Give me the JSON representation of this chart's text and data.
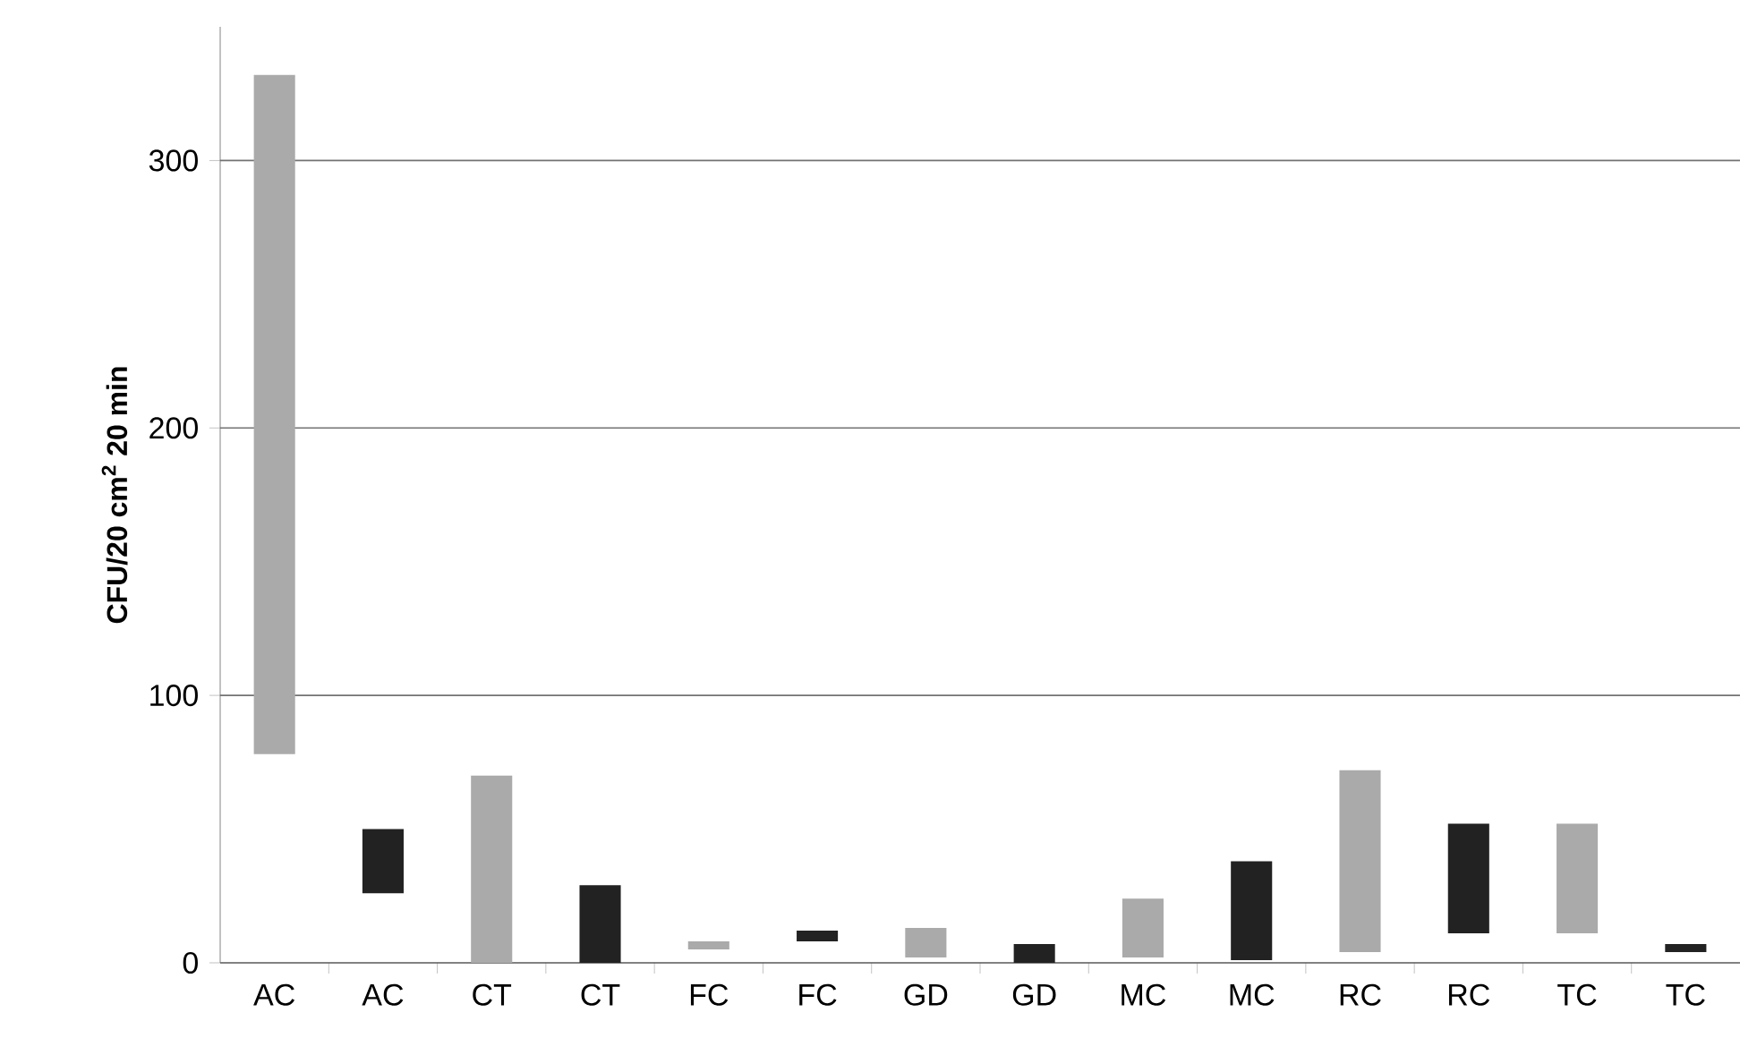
{
  "chart_data": {
    "type": "bar",
    "ylabel": "CFU/20 cm$^{2}$ 20 min",
    "categories": [
      "AC",
      "AC",
      "CT",
      "CT",
      "FC",
      "FC",
      "GD",
      "GD",
      "MC",
      "MC",
      "RC",
      "RC",
      "TC",
      "TC"
    ],
    "base": [
      78,
      26,
      0,
      0,
      5,
      8,
      2,
      0,
      2,
      1,
      4,
      11,
      11,
      4
    ],
    "values": [
      254,
      24,
      70,
      29,
      3,
      4,
      11,
      7,
      22,
      37,
      68,
      41,
      41,
      3
    ],
    "colors": [
      "#aaaaaa",
      "#222222",
      "#aaaaaa",
      "#222222",
      "#aaaaaa",
      "#222222",
      "#aaaaaa",
      "#222222",
      "#aaaaaa",
      "#222222",
      "#aaaaaa",
      "#222222",
      "#aaaaaa",
      "#222222"
    ],
    "ylim": [
      0,
      350
    ],
    "yticks": [
      0,
      100,
      200,
      300
    ],
    "grid": "y"
  }
}
